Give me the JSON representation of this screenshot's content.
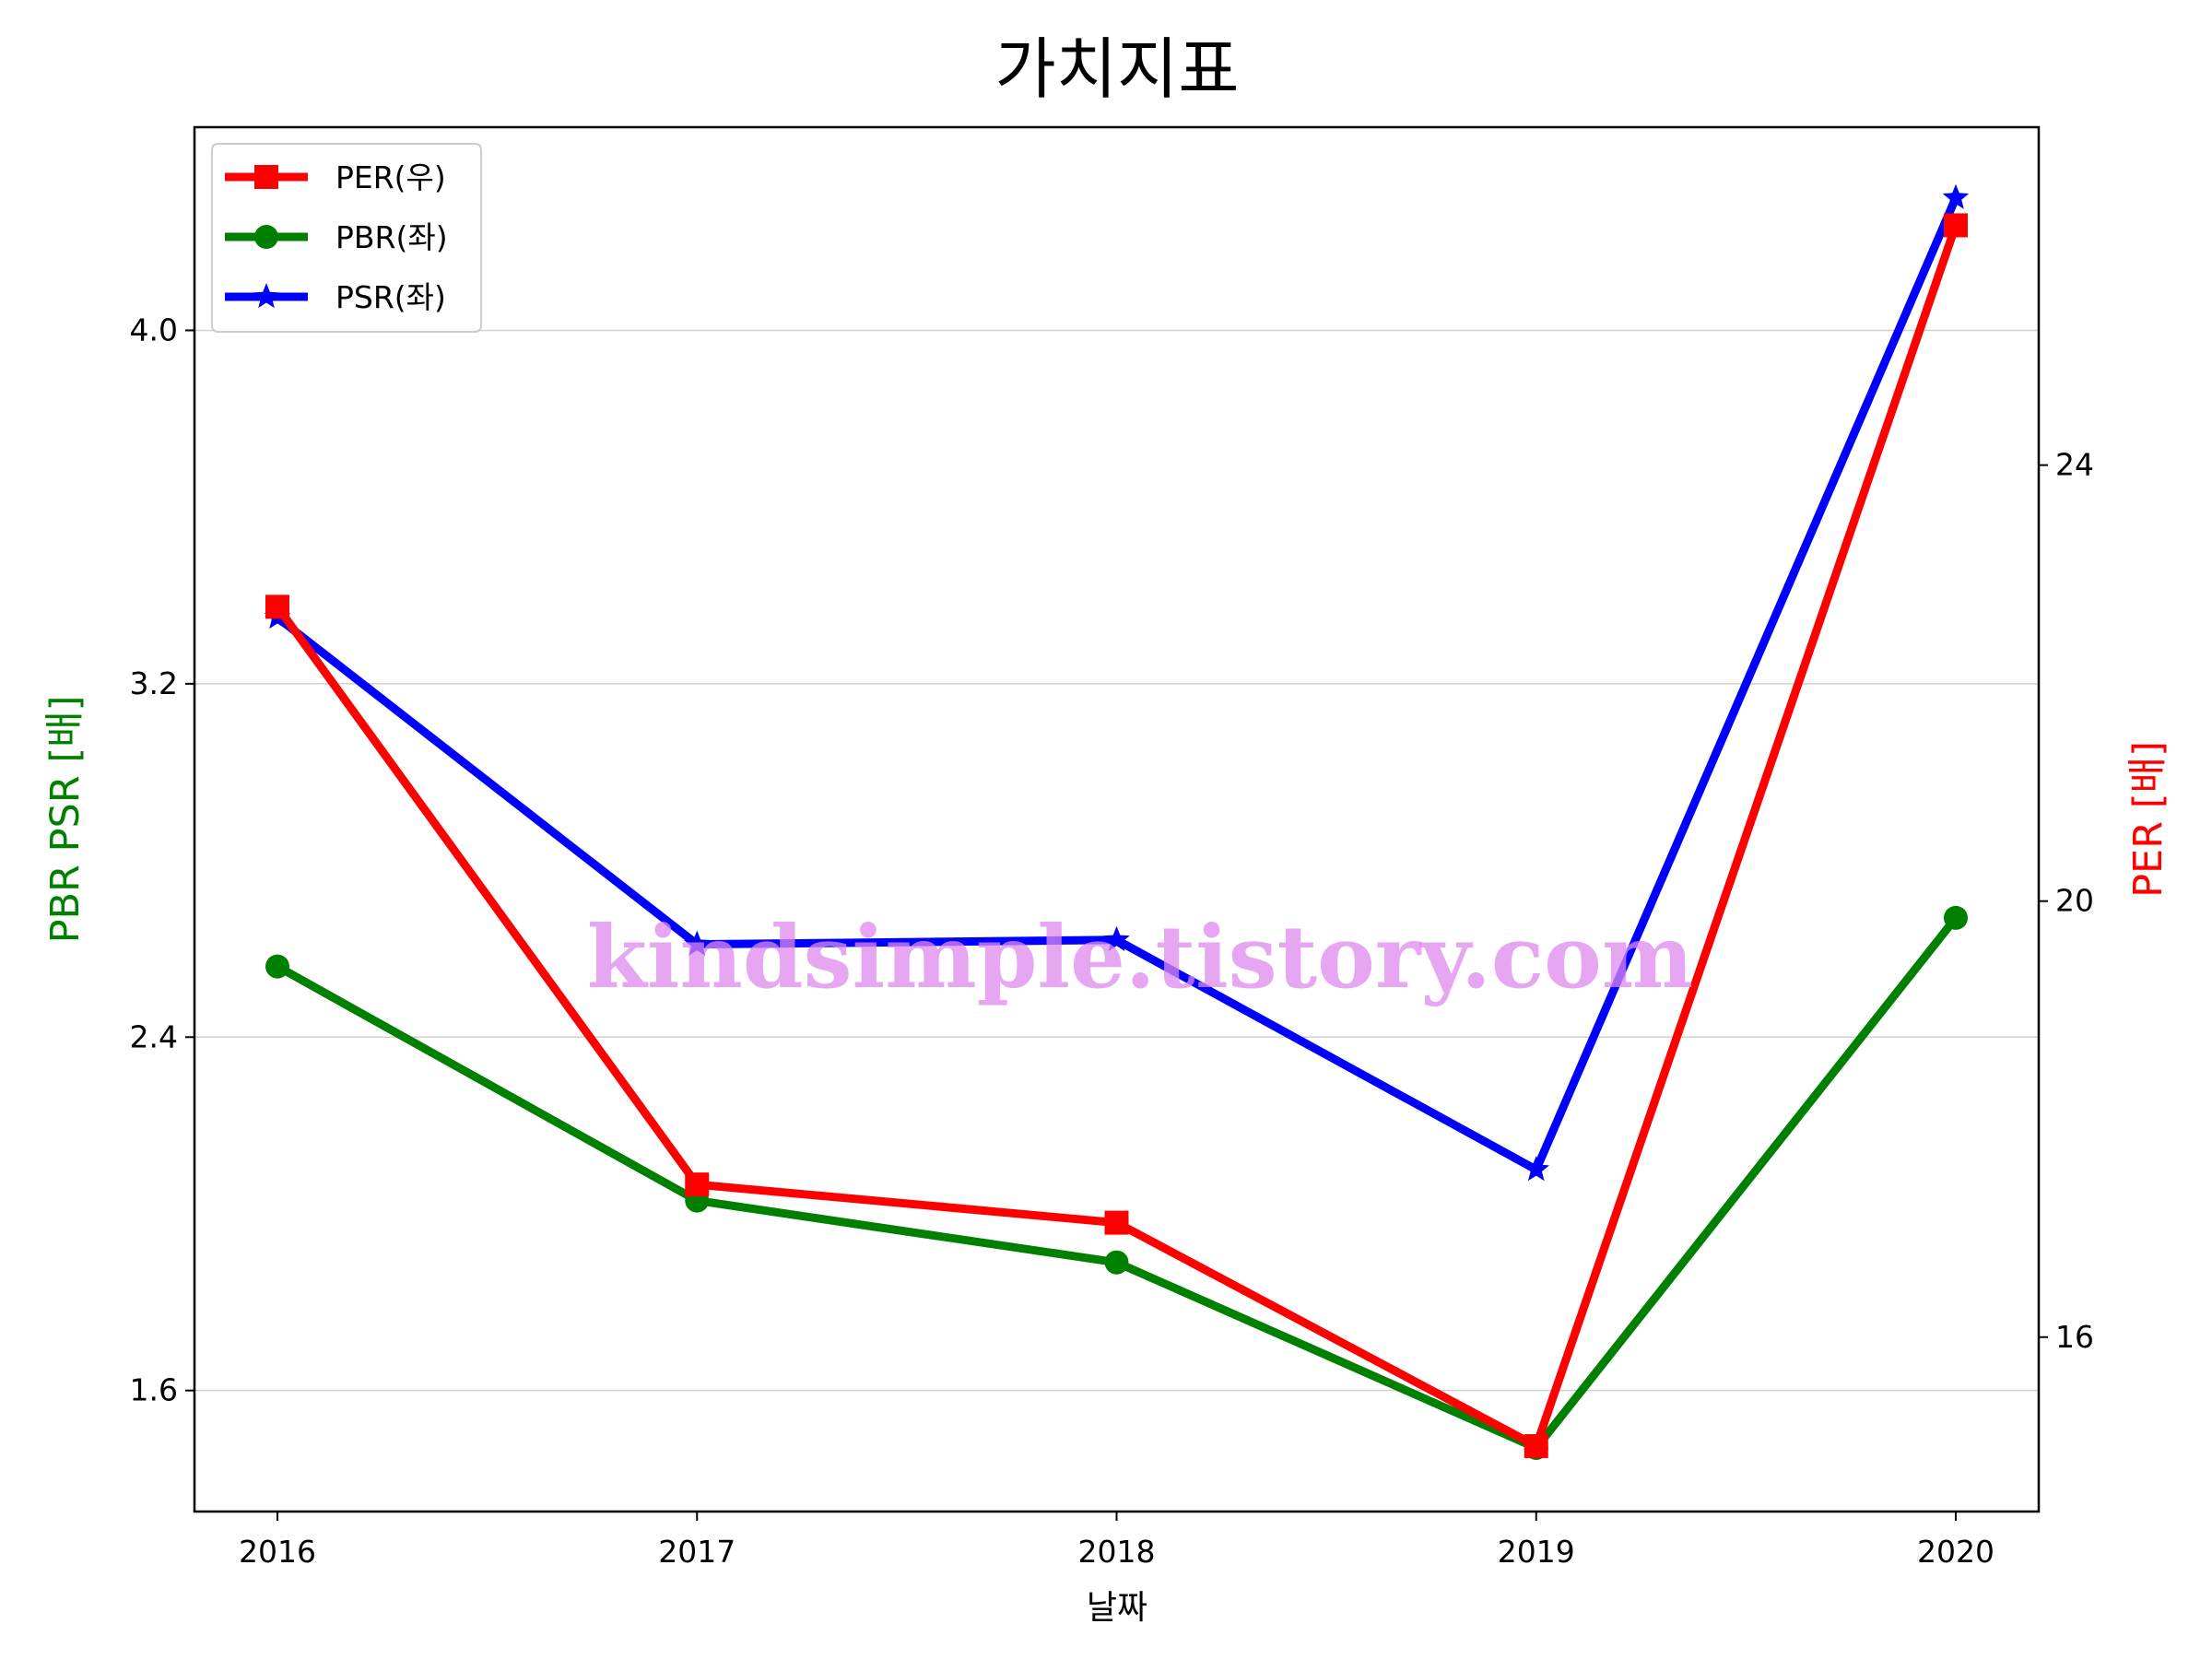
{
  "chart_data": {
    "type": "line",
    "title": "가치지표",
    "xlabel": "날짜",
    "ylabel_left": "PBR PSR [배]",
    "ylabel_right": "PER [배]",
    "categories": [
      "2016",
      "2017",
      "2018",
      "2019",
      "2020"
    ],
    "left_axis": {
      "ylim": [
        1.326,
        4.46
      ],
      "ticks": [
        "1.6",
        "2.4",
        "3.2",
        "4.0"
      ],
      "tick_values": [
        1.6,
        2.4,
        3.2,
        4.0
      ]
    },
    "right_axis": {
      "ylim": [
        14.4,
        27.1
      ],
      "ticks": [
        "16",
        "20",
        "24"
      ],
      "tick_values": [
        16,
        20,
        24
      ]
    },
    "grid": "horizontal, left axis",
    "legend_position": "top-left",
    "series": [
      {
        "name": "PER(우)",
        "axis": "right",
        "color": "#ff0000",
        "marker": "square",
        "values": [
          22.7,
          17.4,
          17.05,
          15.0,
          26.2
        ]
      },
      {
        "name": "PBR(좌)",
        "axis": "left",
        "color": "#008000",
        "marker": "circle",
        "values": [
          2.56,
          2.03,
          1.89,
          1.47,
          2.67
        ]
      },
      {
        "name": "PSR(좌)",
        "axis": "left",
        "color": "#0000ff",
        "marker": "star",
        "values": [
          3.35,
          2.61,
          2.62,
          2.1,
          4.3
        ]
      }
    ],
    "watermark": "kindsimple.tistory.com"
  }
}
